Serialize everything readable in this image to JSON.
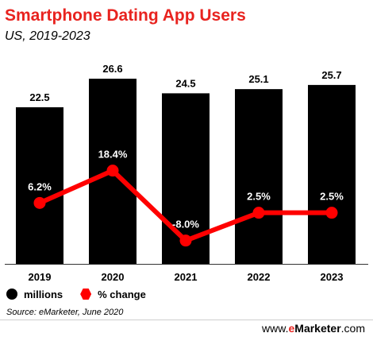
{
  "title": "Smartphone Dating App Users",
  "subtitle": "US, 2019-2023",
  "chart_data": {
    "type": "bar",
    "categories": [
      "2019",
      "2020",
      "2021",
      "2022",
      "2023"
    ],
    "series": [
      {
        "name": "millions",
        "type": "bar",
        "values": [
          22.5,
          26.6,
          24.5,
          25.1,
          25.7
        ],
        "labels": [
          "22.5",
          "26.6",
          "24.5",
          "25.1",
          "25.7"
        ],
        "color": "#000000"
      },
      {
        "name": "% change",
        "type": "line",
        "values": [
          6.2,
          18.4,
          -8.0,
          2.5,
          2.5
        ],
        "labels": [
          "6.2%",
          "18.4%",
          "-8.0%",
          "2.5%",
          "2.5%"
        ],
        "color": "#ff0000"
      }
    ]
  },
  "source": "Source: eMarketer, June 2020",
  "brand": {
    "prefix": "www.",
    "e": "e",
    "name": "Marketer",
    "suffix": ".com"
  }
}
